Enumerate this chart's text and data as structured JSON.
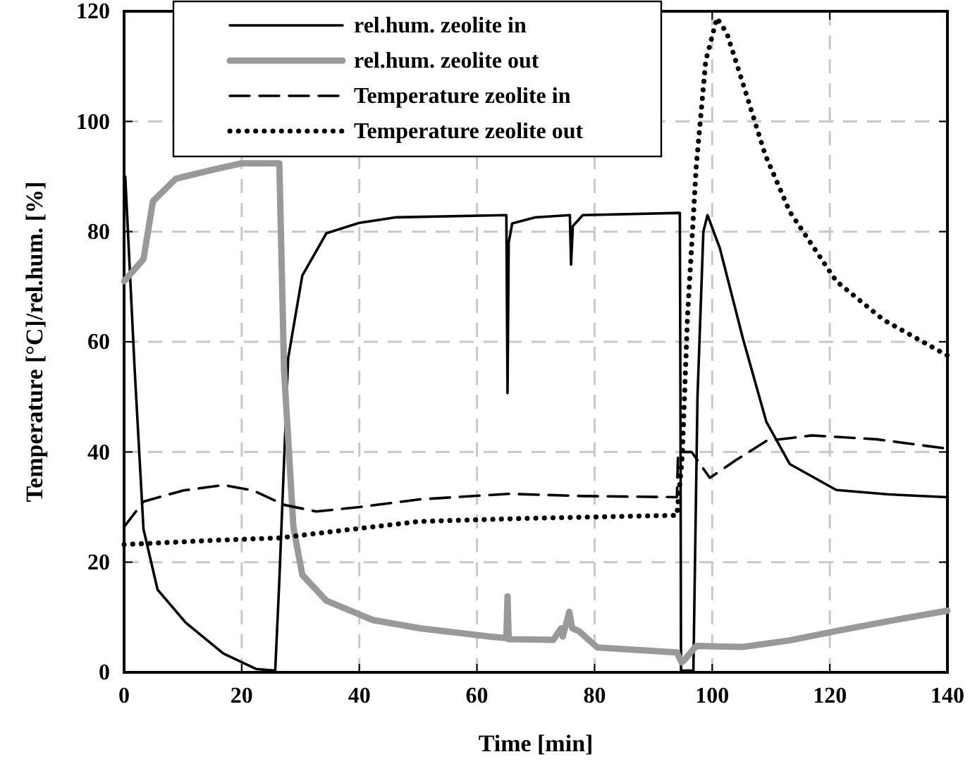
{
  "chart_data": {
    "type": "line",
    "xlabel": "Time [min]",
    "ylabel": "Temperature [°C]/rel.hum. [%]",
    "xlim": [
      0,
      140
    ],
    "ylim": [
      0,
      120
    ],
    "xticks": [
      0,
      20,
      40,
      60,
      80,
      100,
      120,
      140
    ],
    "yticks": [
      0,
      20,
      40,
      60,
      80,
      100,
      120
    ],
    "grid": true,
    "legend": "top left",
    "marker": "none",
    "series": [
      {
        "name": "rel.hum.  zeolite in",
        "color": "#000000",
        "line_style": "solid",
        "x": [
          0,
          0.2,
          1.8,
          3.3,
          5.7,
          10.5,
          16.9,
          22.5,
          25.7,
          26.4,
          27.9,
          30.3,
          34.4,
          40,
          46.3,
          65,
          65.2,
          65.4,
          66,
          70,
          75.8,
          76,
          76.3,
          78,
          94.5,
          94.6,
          94.7,
          96.8,
          97.5,
          98.5,
          99.2,
          101.3,
          105.2,
          109.2,
          113.2,
          121.1,
          130,
          140
        ],
        "values": [
          86,
          90,
          55,
          26,
          15,
          9,
          3.4,
          0.6,
          0.3,
          16.7,
          57,
          72,
          79.7,
          81.6,
          82.6,
          83,
          50.7,
          78,
          81.5,
          82.6,
          83,
          74,
          81,
          83,
          83.4,
          50,
          0.3,
          0.3,
          50,
          80,
          83,
          77,
          60.7,
          45.5,
          37.8,
          33.1,
          32.3,
          31.8
        ]
      },
      {
        "name": "rel.hum.  zeolite out",
        "color": "#999999",
        "line_style": "solid",
        "x": [
          0,
          3.3,
          4.9,
          8.8,
          15.3,
          20,
          26.4,
          27.2,
          28.8,
          30.3,
          34.4,
          42.3,
          50.3,
          62.2,
          65,
          65.2,
          65.4,
          73,
          74.3,
          74.6,
          75.7,
          76.2,
          77.3,
          80.5,
          94,
          94.8,
          95.5,
          97.3,
          105.2,
          113.2,
          121.1,
          130,
          140
        ],
        "values": [
          71,
          75,
          85.5,
          89.6,
          91.3,
          92.4,
          92.4,
          55,
          26.3,
          17.7,
          13,
          9.5,
          8,
          6.5,
          6.2,
          13.8,
          6,
          5.9,
          8,
          6.5,
          11,
          8,
          7.5,
          4.5,
          3.6,
          1.8,
          2.5,
          4.8,
          4.6,
          5.8,
          7.5,
          9.3,
          11.2
        ]
      },
      {
        "name": "Temperature zeolite in",
        "color": "#000000",
        "line_style": "dashed",
        "x": [
          0,
          3.3,
          10,
          16.9,
          22,
          27.2,
          32.7,
          40,
          50.3,
          65.4,
          78,
          94,
          94.2,
          96.5,
          99.6,
          104,
          109.2,
          117,
          128,
          140
        ],
        "values": [
          26.4,
          31,
          33,
          34,
          33,
          30.4,
          29.2,
          30,
          31.4,
          32.4,
          32,
          31.8,
          40,
          40,
          35.3,
          38.5,
          42,
          43,
          42.3,
          40.6
        ]
      },
      {
        "name": "Temperature zeolite out",
        "color": "#000000",
        "line_style": "dotted",
        "x": [
          0,
          16,
          26.4,
          35,
          50.3,
          70,
          94,
          94.9,
          95.8,
          97.3,
          98.9,
          100.8,
          102.5,
          105.2,
          109,
          113.2,
          121.1,
          129.1,
          140
        ],
        "values": [
          23.2,
          24,
          24.4,
          25.5,
          27.4,
          28,
          28.5,
          39,
          64.5,
          92,
          111,
          118.8,
          116,
          107,
          94,
          83.6,
          71,
          64,
          57.5
        ]
      }
    ]
  }
}
